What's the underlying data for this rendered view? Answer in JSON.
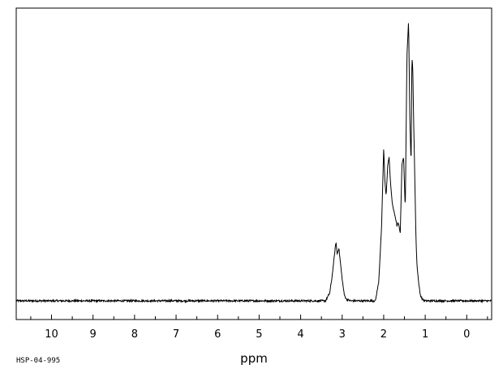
{
  "chart_data": {
    "type": "line",
    "title": "",
    "xlabel": "ppm",
    "ylabel": "",
    "sample_id": "HSP-04-995",
    "x_reversed": true,
    "xlim": [
      10.85,
      -0.6
    ],
    "ylim": [
      0,
      1
    ],
    "baseline": 0.06,
    "noise_amplitude": 0.003,
    "x_ticks": [
      10,
      9,
      8,
      7,
      6,
      5,
      4,
      3,
      2,
      1,
      0
    ],
    "minor_tick_step": 0.5,
    "grid": false,
    "legend": "none",
    "line_color": "#000000",
    "series": [
      {
        "x": [
          11.0,
          3.4,
          3.3,
          3.25,
          3.2,
          3.15,
          3.12,
          3.08,
          3.04,
          3.0,
          2.95,
          2.9,
          2.8,
          2.2,
          2.12,
          2.05,
          2.0,
          1.97,
          1.94,
          1.9,
          1.87,
          1.84,
          1.8,
          1.76,
          1.72,
          1.68,
          1.65,
          1.6,
          1.56,
          1.52,
          1.48,
          1.44,
          1.4,
          1.37,
          1.34,
          1.32,
          1.3,
          1.28,
          1.26,
          1.24,
          1.22,
          1.2,
          1.16,
          1.12,
          1.07,
          1.0,
          0.95,
          0.9,
          -0.6
        ],
        "y": [
          0.06,
          0.06,
          0.085,
          0.13,
          0.19,
          0.25,
          0.21,
          0.23,
          0.18,
          0.13,
          0.08,
          0.065,
          0.06,
          0.06,
          0.12,
          0.3,
          0.55,
          0.44,
          0.4,
          0.5,
          0.52,
          0.45,
          0.38,
          0.35,
          0.33,
          0.3,
          0.31,
          0.28,
          0.5,
          0.52,
          0.35,
          0.85,
          0.96,
          0.64,
          0.5,
          0.84,
          0.81,
          0.65,
          0.52,
          0.38,
          0.25,
          0.18,
          0.12,
          0.08,
          0.065,
          0.06,
          0.06,
          0.06,
          0.06
        ]
      }
    ]
  }
}
